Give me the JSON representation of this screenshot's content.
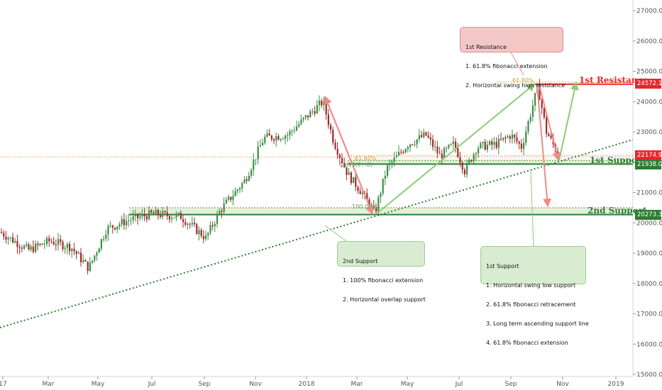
{
  "chart_data": {
    "type": "candlestick",
    "y_axis": {
      "position": "right",
      "ylim": [
        15000,
        27500
      ],
      "ticks": [
        "27000.0",
        "26000.0",
        "25000.0",
        "24000.0",
        "23000.0",
        "22000.0",
        "21000.0",
        "20000.0",
        "19000.0",
        "18000.0",
        "17000.0",
        "16000.0",
        "15000.0"
      ]
    },
    "x_axis": {
      "ticks": [
        "17",
        "Mar",
        "May",
        "Jul",
        "Sep",
        "Nov",
        "2018",
        "Mar",
        "May",
        "Jul",
        "Sep",
        "Nov",
        "2019"
      ]
    },
    "price_badges": [
      {
        "value": "24572.1",
        "color": "#e8262a"
      },
      {
        "value": "22174.9",
        "color": "#e8262a"
      },
      {
        "value": "21938.0",
        "color": "#2e7d32"
      },
      {
        "value": "20273.3",
        "color": "#2e7d32"
      }
    ],
    "levels": {
      "resistance_1": {
        "label": "1st Resistance",
        "value": 24572.1,
        "color": "#e8262a"
      },
      "support_1": {
        "label": "1st Support",
        "value": 21938.0,
        "color": "#2e7d32"
      },
      "support_2": {
        "label": "2nd Support",
        "value": 20273.3,
        "color": "#2e7d32"
      },
      "current_price": {
        "value": 22174.9,
        "color": "#e07a3a"
      }
    },
    "fib_labels": {
      "top": "61.80%",
      "mid1": "61.80%",
      "mid2": "0.618(2...8)",
      "low": "100.00%"
    },
    "annotations": {
      "resistance_1": {
        "lines": [
          "1st Resistance",
          "1. 61.8% fibonacci extension",
          "2. Horizontal swing high resistance"
        ],
        "color": "#f4c7c7"
      },
      "support_2": {
        "lines": [
          "2nd Support",
          "1. 100% fibonacci extension",
          "2. Horizontal overlap support"
        ],
        "color": "#d9ecd2"
      },
      "support_1": {
        "lines": [
          "1st Support",
          "1. Horizontal swing low support",
          "2. 61.8% fibonacci retracement",
          "3. Long term ascending support line",
          "4. 61.8% fibonacci extension"
        ],
        "color": "#d9ecd2"
      }
    }
  }
}
